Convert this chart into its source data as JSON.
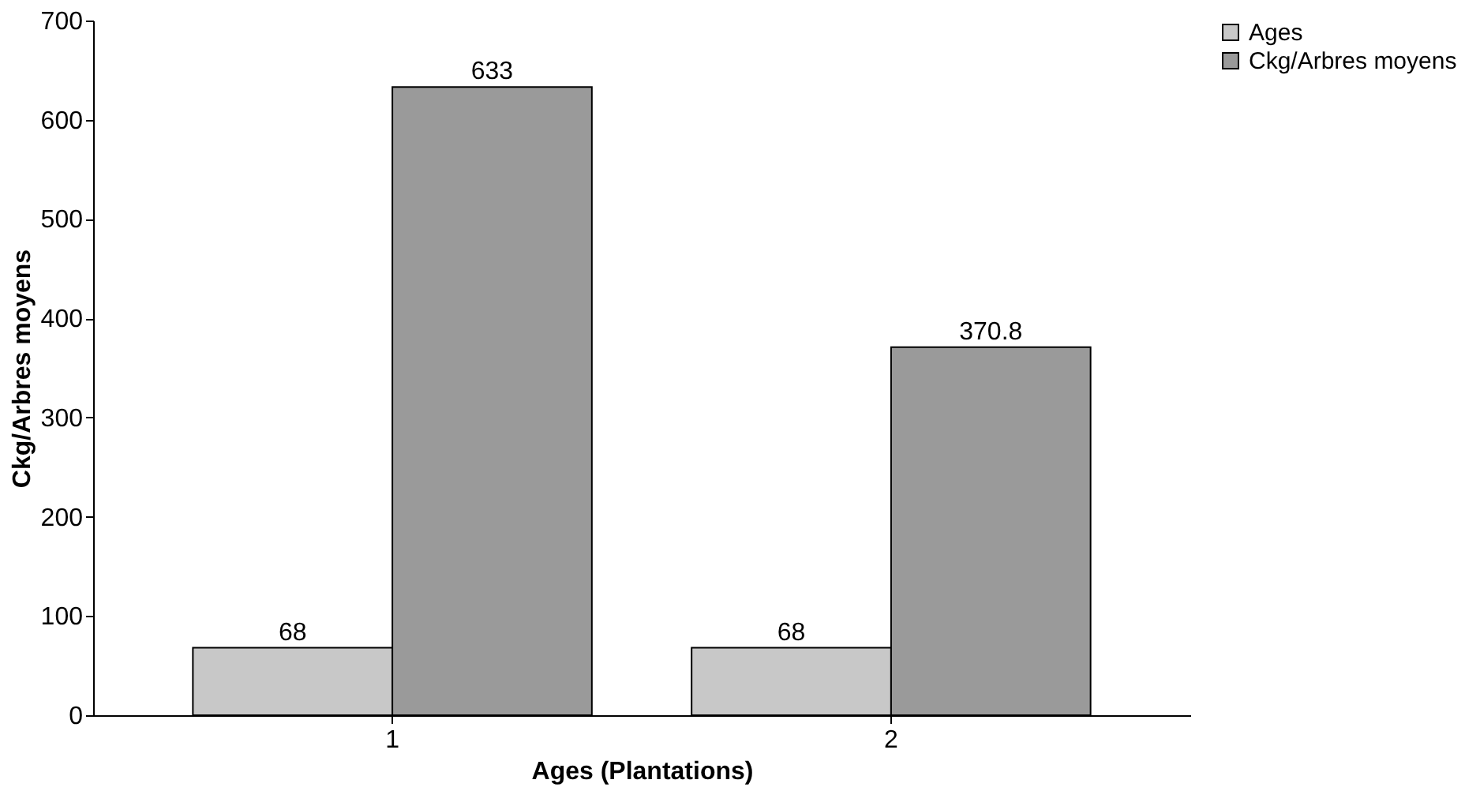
{
  "chart_data": {
    "type": "bar",
    "xlabel": "Ages (Plantations)",
    "ylabel": "Ckg/Arbres moyens",
    "categories": [
      "1",
      "2"
    ],
    "series": [
      {
        "name": "Ages",
        "color": "#c8c8c8",
        "values": [
          68,
          68
        ]
      },
      {
        "name": "Ckg/Arbres moyens",
        "color": "#9a9a9a",
        "values": [
          633,
          370.8
        ]
      }
    ],
    "ylim": [
      0,
      700
    ],
    "yticks": [
      0,
      100,
      200,
      300,
      400,
      500,
      600,
      700
    ],
    "data_labels": true,
    "legend": "right",
    "grid": false
  }
}
